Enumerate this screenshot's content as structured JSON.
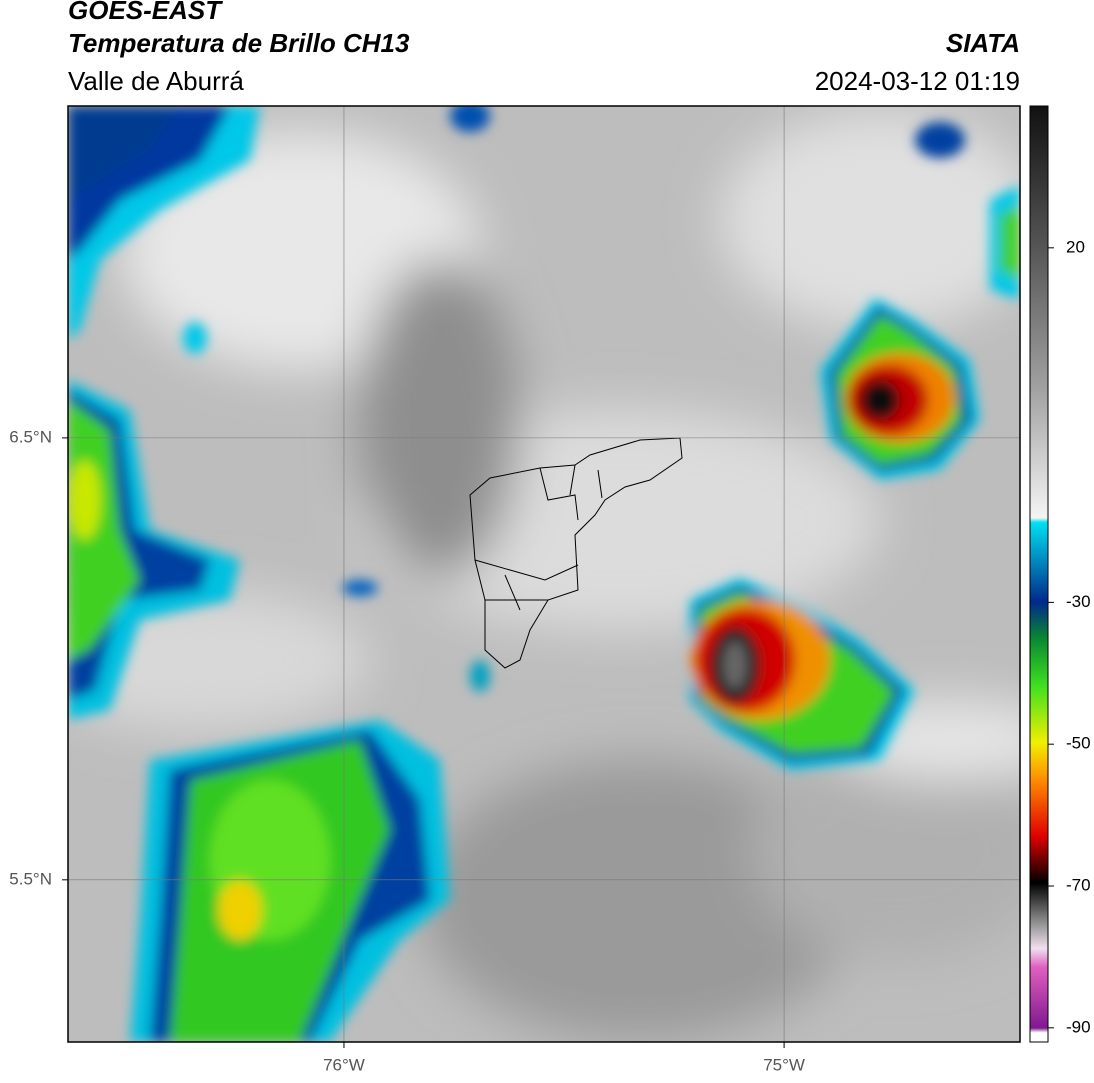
{
  "header": {
    "title": "GOES-EAST",
    "subtitle": "Temperatura de Brillo CH13",
    "region": "Valle de Aburrá",
    "source": "SIATA",
    "datetime": "2024-03-12 01:19"
  },
  "map": {
    "xlim": [
      -76.627,
      -74.464
    ],
    "ylim": [
      5.133,
      7.251
    ],
    "xticks": [
      {
        "value": -76,
        "label": "76°W"
      },
      {
        "value": -75,
        "label": "75°W"
      }
    ],
    "yticks": [
      {
        "value": 6.5,
        "label": "6.5°N"
      },
      {
        "value": 5.5,
        "label": "5.5°N"
      }
    ],
    "grid": true
  },
  "colorbar": {
    "lim": [
      -92,
      40
    ],
    "ticks": [
      20,
      -30,
      -50,
      -70,
      -90
    ]
  }
}
